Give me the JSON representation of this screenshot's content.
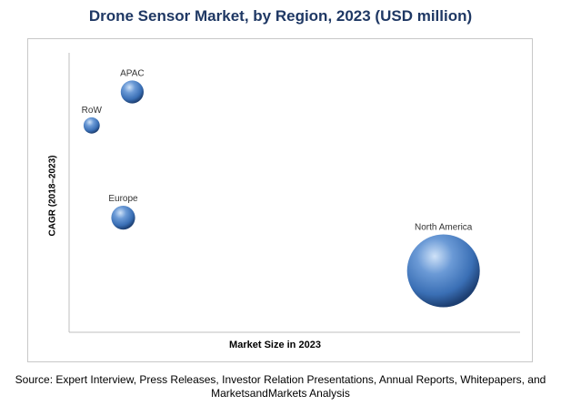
{
  "chart_data": {
    "type": "scatter",
    "title": "Drone Sensor Market, by Region, 2023 (USD million)",
    "xlabel": "Market Size in 2023",
    "ylabel": "CAGR (2018–2023)",
    "xlim": [
      0,
      100
    ],
    "ylim": [
      0,
      100
    ],
    "grid": false,
    "legend": "none",
    "colors": {
      "bubble": "#3a6fb5",
      "bubble_light": "#a9c8ee",
      "bubble_dark": "#1d3f72",
      "axis": "#bfbfbf"
    },
    "series": [
      {
        "label": "APAC",
        "x": 14,
        "y": 86,
        "size": 3
      },
      {
        "label": "RoW",
        "x": 5,
        "y": 74,
        "size": 1.5
      },
      {
        "label": "Europe",
        "x": 12,
        "y": 41,
        "size": 3.2
      },
      {
        "label": "North America",
        "x": 83,
        "y": 22,
        "size": 30
      }
    ]
  },
  "source": {
    "line1": "Source: Expert Interview, Press Releases, Investor Relation Presentations, Annual Reports, Whitepapers, and",
    "line2": "MarketsandMarkets Analysis"
  }
}
